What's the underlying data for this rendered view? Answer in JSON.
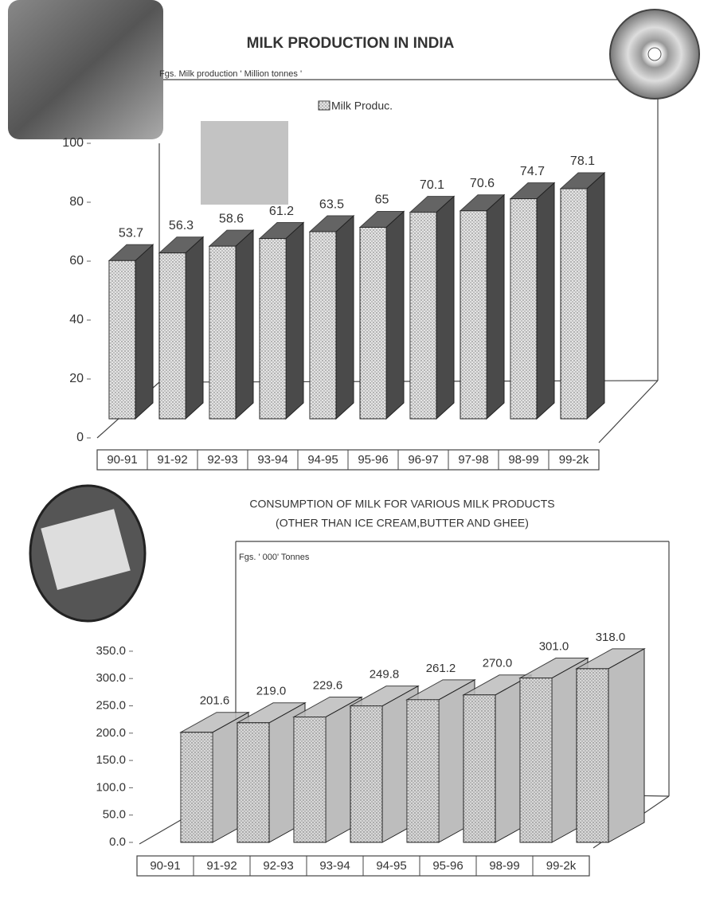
{
  "chart_data": [
    {
      "type": "bar3d",
      "title": "MILK PRODUCTION IN INDIA",
      "unit_label": "Fgs. Milk production ' Million tonnes '",
      "categories": [
        "90-91",
        "91-92",
        "92-93",
        "93-94",
        "94-95",
        "95-96",
        "96-97",
        "97-98",
        "98-99",
        "99-2k"
      ],
      "series": [
        {
          "name": "Milk Produc.",
          "color": "#e4e4e4",
          "side_color": "#4a4a4a",
          "values": [
            53.7,
            56.3,
            58.6,
            61.2,
            63.5,
            65,
            70.1,
            70.6,
            74.7,
            78.1
          ]
        }
      ],
      "ylim": [
        0,
        100
      ],
      "yticks": [
        0,
        20,
        40,
        60,
        80,
        100
      ]
    },
    {
      "type": "bar3d",
      "title": "CONSUMPTION OF MILK FOR VARIOUS MILK PRODUCTS",
      "subtitle": "(OTHER THAN ICE CREAM,BUTTER AND GHEE)",
      "unit_label": "Fgs. ' 000' Tonnes",
      "categories": [
        "90-91",
        "91-92",
        "92-93",
        "93-94",
        "94-95",
        "95-96",
        "98-99",
        "99-2k"
      ],
      "series": [
        {
          "color": "#d8d8d8",
          "side_color": "#bdbdbd",
          "values": [
            201.6,
            219,
            229.6,
            249.8,
            261.2,
            270,
            301,
            318
          ],
          "value_labels": [
            "201.6",
            "219.0",
            "229.6",
            "249.8",
            "261.2",
            "270.0",
            "301.0",
            "318.0"
          ]
        }
      ],
      "ylim": [
        0,
        350
      ],
      "yticks": [
        {
          "value": 0,
          "label": "0.0"
        },
        {
          "value": 50,
          "label": "50.0"
        },
        {
          "value": 100,
          "label": "100.0"
        },
        {
          "value": 150,
          "label": "150.0"
        },
        {
          "value": 200,
          "label": "200.0"
        },
        {
          "value": 250,
          "label": "250.0"
        },
        {
          "value": 300,
          "label": "300.0"
        },
        {
          "value": 350,
          "label": "350.0"
        }
      ]
    }
  ]
}
